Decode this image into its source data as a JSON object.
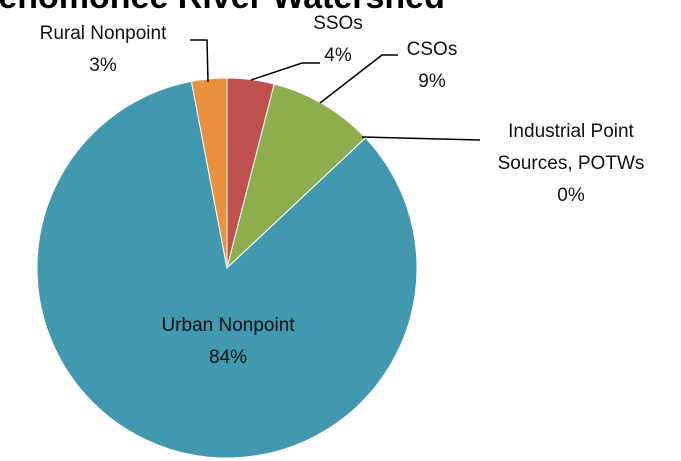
{
  "chart_data": {
    "type": "pie",
    "title": "Menomonee River Watershed",
    "categories": [
      "SSOs",
      "CSOs",
      "Industrial Point Sources, POTWs",
      "Urban Nonpoint",
      "Rural Nonpoint"
    ],
    "values": [
      4,
      9,
      0,
      84,
      3
    ],
    "value_labels": [
      "4%",
      "9%",
      "0%",
      "84%",
      "3%"
    ],
    "colors": [
      "#c0504d",
      "#8ead4f",
      "#4f81bd",
      "#4198af",
      "#e9913f"
    ]
  }
}
